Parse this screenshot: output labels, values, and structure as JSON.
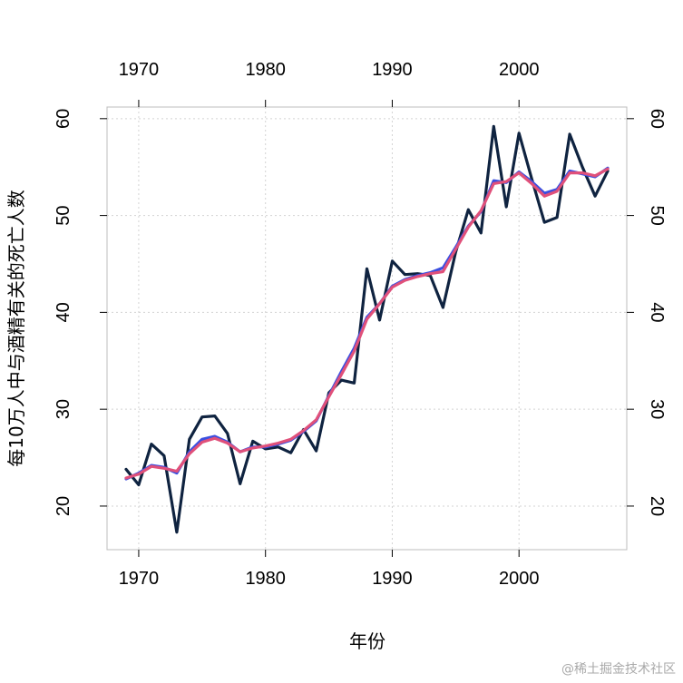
{
  "chart_data": {
    "type": "line",
    "xlabel": "年份",
    "ylabel": "每10万人中与酒精有关的死亡人数",
    "xlim": [
      1967.5,
      2008.5
    ],
    "ylim": [
      15.5,
      61.2
    ],
    "x_ticks": [
      1970,
      1980,
      1990,
      2000
    ],
    "y_ticks": [
      20,
      30,
      40,
      50,
      60
    ],
    "grid": true,
    "x": [
      1969,
      1970,
      1971,
      1972,
      1973,
      1974,
      1975,
      1976,
      1977,
      1978,
      1979,
      1980,
      1981,
      1982,
      1983,
      1984,
      1985,
      1986,
      1987,
      1988,
      1989,
      1990,
      1991,
      1992,
      1993,
      1994,
      1995,
      1996,
      1997,
      1998,
      1999,
      2000,
      2001,
      2002,
      2003,
      2004,
      2005,
      2006,
      2007
    ],
    "series": [
      {
        "color": "#0f2340",
        "values": [
          23.8,
          22.2,
          26.4,
          25.2,
          17.3,
          26.9,
          29.2,
          29.3,
          27.5,
          22.3,
          26.7,
          25.9,
          26.1,
          25.5,
          27.9,
          25.7,
          31.7,
          33.0,
          32.7,
          44.5,
          39.2,
          45.3,
          43.9,
          44.0,
          43.8,
          40.5,
          46.2,
          50.6,
          48.2,
          59.2,
          50.9,
          58.5,
          53.8,
          49.3,
          49.8,
          58.4,
          55.0,
          52.0,
          54.6
        ]
      },
      {
        "color": "#3b4fe0",
        "values": [
          22.8,
          23.4,
          24.2,
          24.0,
          23.4,
          25.6,
          26.9,
          27.2,
          26.6,
          25.6,
          26.1,
          26.1,
          26.4,
          26.8,
          27.7,
          28.8,
          31.4,
          33.9,
          36.3,
          39.5,
          40.9,
          42.7,
          43.4,
          43.8,
          44.1,
          44.6,
          46.7,
          48.9,
          50.4,
          53.6,
          53.4,
          54.5,
          53.5,
          52.3,
          52.7,
          54.6,
          54.3,
          54.0,
          54.9
        ]
      },
      {
        "color": "#e0507a",
        "values": [
          22.9,
          23.3,
          24.1,
          23.9,
          23.6,
          25.4,
          26.6,
          27.0,
          26.5,
          25.6,
          26.0,
          26.2,
          26.5,
          26.9,
          27.8,
          28.9,
          31.3,
          33.6,
          36.0,
          39.3,
          40.9,
          42.6,
          43.3,
          43.7,
          44.0,
          44.2,
          46.5,
          48.8,
          50.5,
          53.3,
          53.5,
          54.4,
          53.3,
          52.0,
          52.5,
          54.4,
          54.4,
          54.1,
          54.8
        ]
      }
    ]
  },
  "watermark": "@稀土掘金技术社区"
}
